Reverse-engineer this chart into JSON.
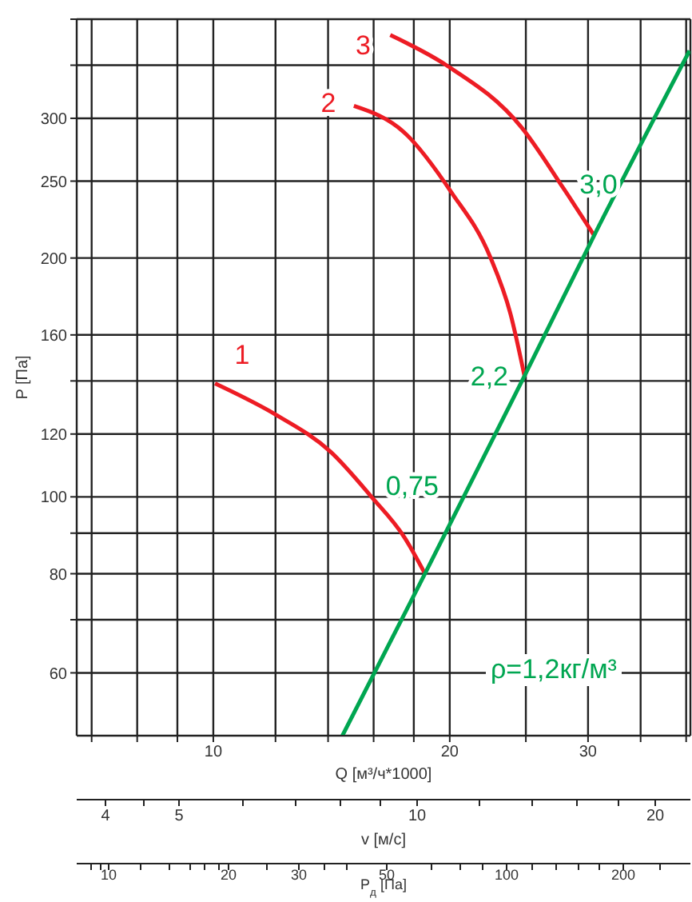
{
  "chart_data": [
    {
      "type": "line",
      "xlabel": "Q [м³/ч*1000]",
      "ylabel": "P [Па]",
      "log": "xy",
      "grid": true,
      "xlim": [
        6.7,
        40.5
      ],
      "xticks": [
        {
          "value": 7,
          "label": null
        },
        {
          "value": 8,
          "label": null
        },
        {
          "value": 9,
          "label": null
        },
        10,
        {
          "value": 12,
          "label": null
        },
        {
          "value": 14,
          "label": null
        },
        {
          "value": 16,
          "label": null
        },
        {
          "value": 18,
          "label": null
        },
        20,
        {
          "value": 25,
          "label": null
        },
        30,
        {
          "value": 35,
          "label": null
        },
        {
          "value": 40,
          "label": null
        }
      ],
      "ylim": [
        50,
        400
      ],
      "yticks": [
        60,
        {
          "value": 70,
          "label": null
        },
        80,
        {
          "value": 90,
          "label": null
        },
        100,
        120,
        {
          "value": 140,
          "label": null
        },
        160,
        200,
        250,
        300,
        {
          "value": 350,
          "label": null
        },
        {
          "value": 400,
          "label": null
        }
      ],
      "series": [
        {
          "name": "1",
          "color": "#ed1c24",
          "x": [
            10.05,
            12,
            14.1,
            15.9,
            17.5,
            18.6
          ],
          "values": [
            139,
            127,
            114,
            100,
            89,
            80
          ]
        },
        {
          "name": "2",
          "color": "#ed1c24",
          "x": [
            15.1,
            17.5,
            20.1,
            22.5,
            23.9,
            24.9
          ],
          "values": [
            311,
            288,
            242,
            201,
            170,
            142
          ]
        },
        {
          "name": "3",
          "color": "#ed1c24",
          "x": [
            16.8,
            19.8,
            24.7,
            27.9,
            30.5
          ],
          "values": [
            382,
            350,
            292,
            245,
            214
          ]
        },
        {
          "color": "#00a651",
          "x": [
            14.6,
            18.6,
            24.9,
            30.5,
            40.4
          ],
          "values": [
            50,
            80,
            142,
            213,
            365
          ]
        }
      ],
      "annotations": [
        {
          "text": "0,75",
          "x": 18.6,
          "y": 80
        },
        {
          "text": "2,2",
          "x": 24.9,
          "y": 142
        },
        {
          "text": "3,0",
          "x": 30.5,
          "y": 214
        },
        "ρ=1,2кг/м³"
      ]
    },
    {
      "type": "other",
      "xlabel": "v [м/с]",
      "annotations": [
        "4",
        "5",
        "10",
        "20"
      ]
    },
    {
      "type": "other",
      "xlabel": "P$_{д}$ [Па]",
      "annotations": [
        "10",
        "20",
        "30",
        "50",
        "100",
        "200"
      ]
    }
  ]
}
